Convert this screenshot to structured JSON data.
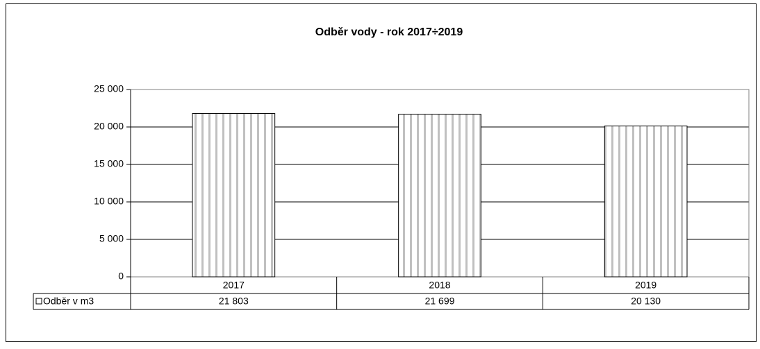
{
  "chart_data": {
    "type": "bar",
    "title": "Odběr vody - rok 2017÷2019",
    "categories": [
      "2017",
      "2018",
      "2019"
    ],
    "series": [
      {
        "name": "Odběr v m3",
        "color": "#c0c0c0",
        "values": [
          21803,
          21699,
          20130
        ],
        "value_labels": [
          "21 803",
          "21 699",
          "20 130"
        ]
      }
    ],
    "ylim": [
      0,
      25000
    ],
    "yticks": [
      0,
      {
        "value": 5000,
        "label": "5 000"
      },
      {
        "value": 10000,
        "label": "10 000"
      },
      {
        "value": 15000,
        "label": "15 000"
      },
      {
        "value": 20000,
        "label": "20 000"
      },
      {
        "value": 25000,
        "label": "25 000"
      }
    ],
    "grid": true
  }
}
